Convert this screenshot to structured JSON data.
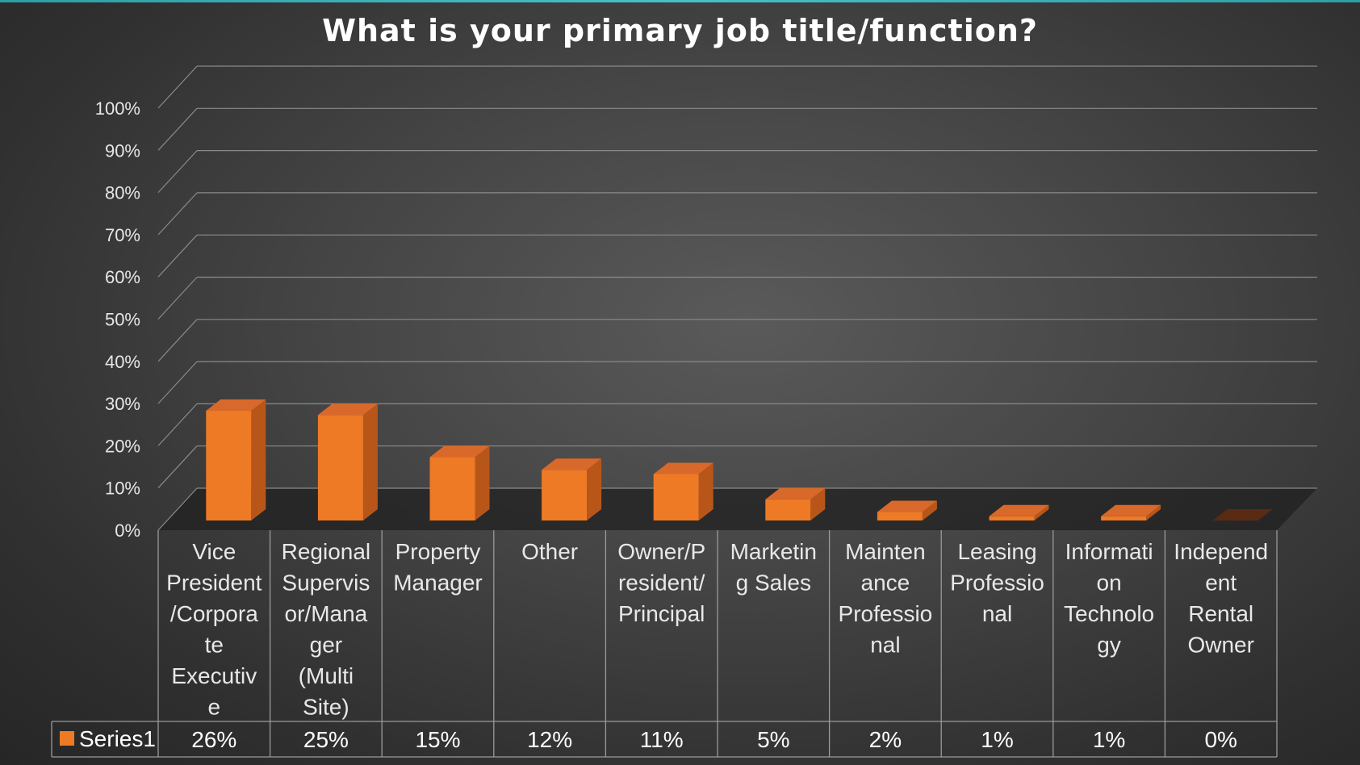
{
  "chart_data": {
    "type": "bar",
    "title": "What is your primary job title/function?",
    "categories": [
      "Vice President/Corporate Executive",
      "Regional Supervisor/Manager (Multi Site)",
      "Property Manager",
      "Other",
      "Owner/President/Principal",
      "Marketing Sales",
      "Maintenance Professional",
      "Leasing Professional",
      "Information Technology",
      "Independent Rental Owner"
    ],
    "category_label_lines": [
      [
        "Vice",
        "President",
        "/Corpora",
        "te",
        "Executiv",
        "e"
      ],
      [
        "Regional",
        "Supervis",
        "or/Mana",
        "ger",
        "(Multi",
        "Site)"
      ],
      [
        "Property",
        "Manager"
      ],
      [
        "Other"
      ],
      [
        "Owner/P",
        "resident/",
        "Principal"
      ],
      [
        "Marketin",
        "g Sales"
      ],
      [
        "Mainten",
        "ance",
        "Professio",
        "nal"
      ],
      [
        "Leasing",
        "Professio",
        "nal"
      ],
      [
        "Informati",
        "on",
        "Technolo",
        "gy"
      ],
      [
        "Independ",
        "ent",
        "Rental",
        "Owner"
      ]
    ],
    "series": [
      {
        "name": "Series1",
        "values": [
          26,
          25,
          15,
          12,
          11,
          5,
          2,
          1,
          1,
          0
        ]
      }
    ],
    "value_labels": [
      "26%",
      "25%",
      "15%",
      "12%",
      "11%",
      "5%",
      "2%",
      "1%",
      "1%",
      "0%"
    ],
    "y_ticks": [
      "0%",
      "10%",
      "20%",
      "30%",
      "40%",
      "50%",
      "60%",
      "70%",
      "80%",
      "90%",
      "100%"
    ],
    "ylim": [
      0,
      100
    ],
    "grid": true,
    "legend": "data-table-left",
    "colors": {
      "bar_front": "#ee7a26",
      "bar_side": "#b8561a",
      "bar_top": "#d9692a"
    }
  }
}
